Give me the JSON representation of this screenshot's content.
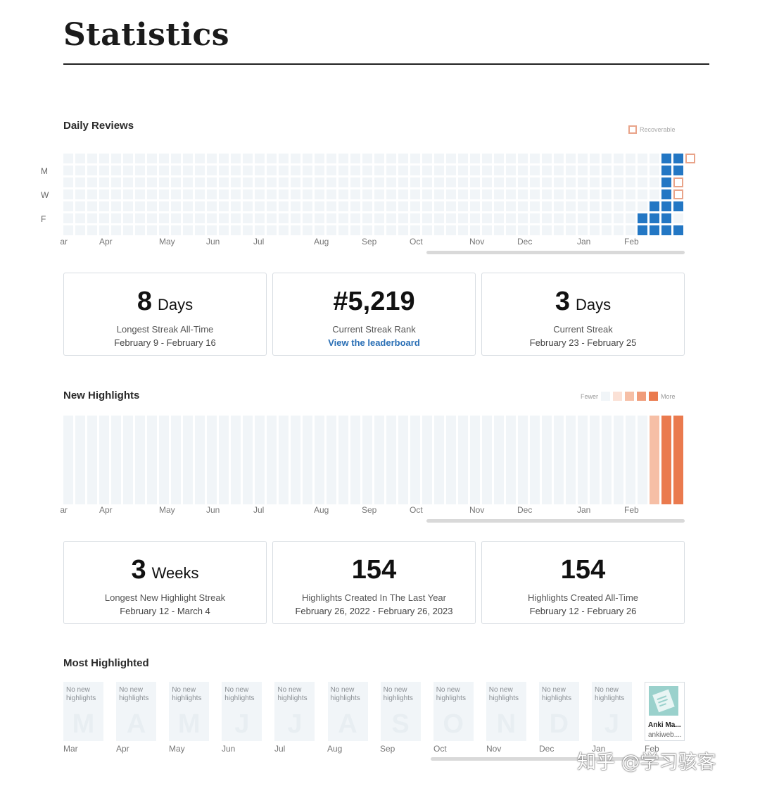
{
  "page": {
    "title": "Statistics"
  },
  "daily_reviews": {
    "title": "Daily Reviews",
    "legend_label": "Recoverable",
    "day_labels": [
      "M",
      "W",
      "F"
    ],
    "months": [
      "Mar",
      "Apr",
      "May",
      "Jun",
      "Jul",
      "Aug",
      "Sep",
      "Oct",
      "Nov",
      "Dec",
      "Jan",
      "Feb"
    ],
    "colors": {
      "empty": "#f1f5f8",
      "reviewed": "#2377c4",
      "recoverable": "#e9a48a"
    }
  },
  "review_cards": [
    {
      "value": "8",
      "unit": "Days",
      "line1": "Longest Streak All-Time",
      "line2": "February 9 - February 16"
    },
    {
      "value": "#5,219",
      "unit": "",
      "line1": "Current Streak Rank",
      "line2": "View the leaderboard"
    },
    {
      "value": "3",
      "unit": "Days",
      "line1": "Current Streak",
      "line2": "February 23 - February 25"
    }
  ],
  "new_highlights": {
    "title": "New Highlights",
    "legend_fewer": "Fewer",
    "legend_more": "More",
    "legend_colors": [
      "#f1f5f8",
      "#fbe1d6",
      "#f6bfa6",
      "#f09c7a",
      "#ea7a4e"
    ],
    "months": [
      "Mar",
      "Apr",
      "May",
      "Jun",
      "Jul",
      "Aug",
      "Sep",
      "Oct",
      "Nov",
      "Dec",
      "Jan",
      "Feb"
    ]
  },
  "highlight_cards": [
    {
      "value": "3",
      "unit": "Weeks",
      "line1": "Longest New Highlight Streak",
      "line2": "February 12 - March 4"
    },
    {
      "value": "154",
      "unit": "",
      "line1": "Highlights Created In The Last Year",
      "line2": "February 26, 2022 - February 26, 2023"
    },
    {
      "value": "154",
      "unit": "",
      "line1": "Highlights Created All-Time",
      "line2": "February 12 - February 26"
    }
  ],
  "most_highlighted": {
    "title": "Most Highlighted",
    "empty_text": "No new highlights",
    "months": [
      "Mar",
      "Apr",
      "May",
      "Jun",
      "Jul",
      "Aug",
      "Sep",
      "Oct",
      "Nov",
      "Dec",
      "Jan",
      "Feb"
    ],
    "watermarks": [
      "M",
      "A",
      "M",
      "J",
      "J",
      "A",
      "S",
      "O",
      "N",
      "D",
      "J"
    ],
    "book": {
      "title": "Anki Ma...",
      "source": "ankiweb...."
    }
  },
  "watermark_text": "知乎 @学习骇客"
}
